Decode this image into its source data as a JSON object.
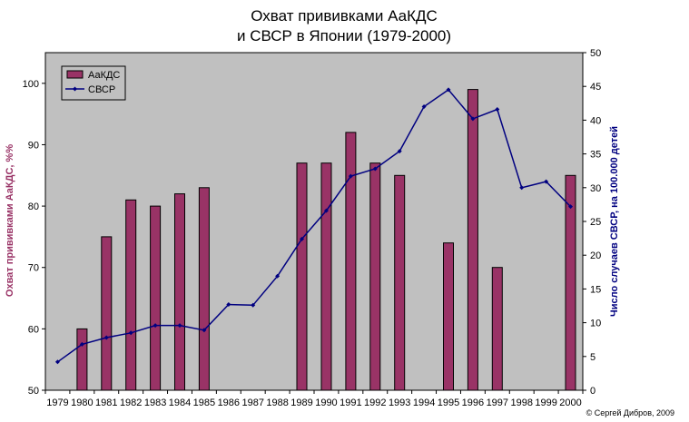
{
  "chart_data": {
    "type": "bar+line",
    "title_lines": [
      "Охват прививками АаКДС",
      "и СВСР в Японии (1979-2000)"
    ],
    "years": [
      "1979",
      "1980",
      "1981",
      "1982",
      "1983",
      "1984",
      "1985",
      "1986",
      "1987",
      "1988",
      "1989",
      "1990",
      "1991",
      "1992",
      "1993",
      "1994",
      "1995",
      "1996",
      "1997",
      "1998",
      "1999",
      "2000"
    ],
    "series": [
      {
        "name": "АаКДС",
        "kind": "bar",
        "axis": "left",
        "color": "#993366",
        "values": [
          null,
          60,
          75,
          81,
          80,
          82,
          83,
          null,
          null,
          null,
          87,
          87,
          92,
          87,
          85,
          null,
          74,
          99,
          70,
          null,
          null,
          85
        ]
      },
      {
        "name": "СВСР",
        "kind": "line",
        "axis": "right",
        "color": "#000080",
        "values": [
          4.2,
          6.8,
          7.8,
          8.5,
          9.6,
          9.6,
          8.9,
          12.7,
          12.6,
          16.9,
          22.4,
          26.6,
          31.7,
          32.8,
          35.4,
          42.0,
          44.5,
          40.2,
          41.6,
          30.0,
          30.9,
          27.2
        ]
      }
    ],
    "left_axis": {
      "label": "Охват прививками АаКДС, %%",
      "ylim": [
        50,
        105
      ],
      "ticks": [
        50,
        60,
        70,
        80,
        90,
        100
      ],
      "color": "#993366"
    },
    "right_axis": {
      "label": "Число случаев СВСР, на 100.000 детей",
      "ylim": [
        0,
        50
      ],
      "ticks": [
        0,
        5,
        10,
        15,
        20,
        25,
        30,
        35,
        40,
        45,
        50
      ],
      "color": "#000080"
    },
    "plot_background": "#c0c0c0",
    "grid": false,
    "legend_position": "top-left"
  },
  "credit": "© Сергей Дибров, 2009"
}
